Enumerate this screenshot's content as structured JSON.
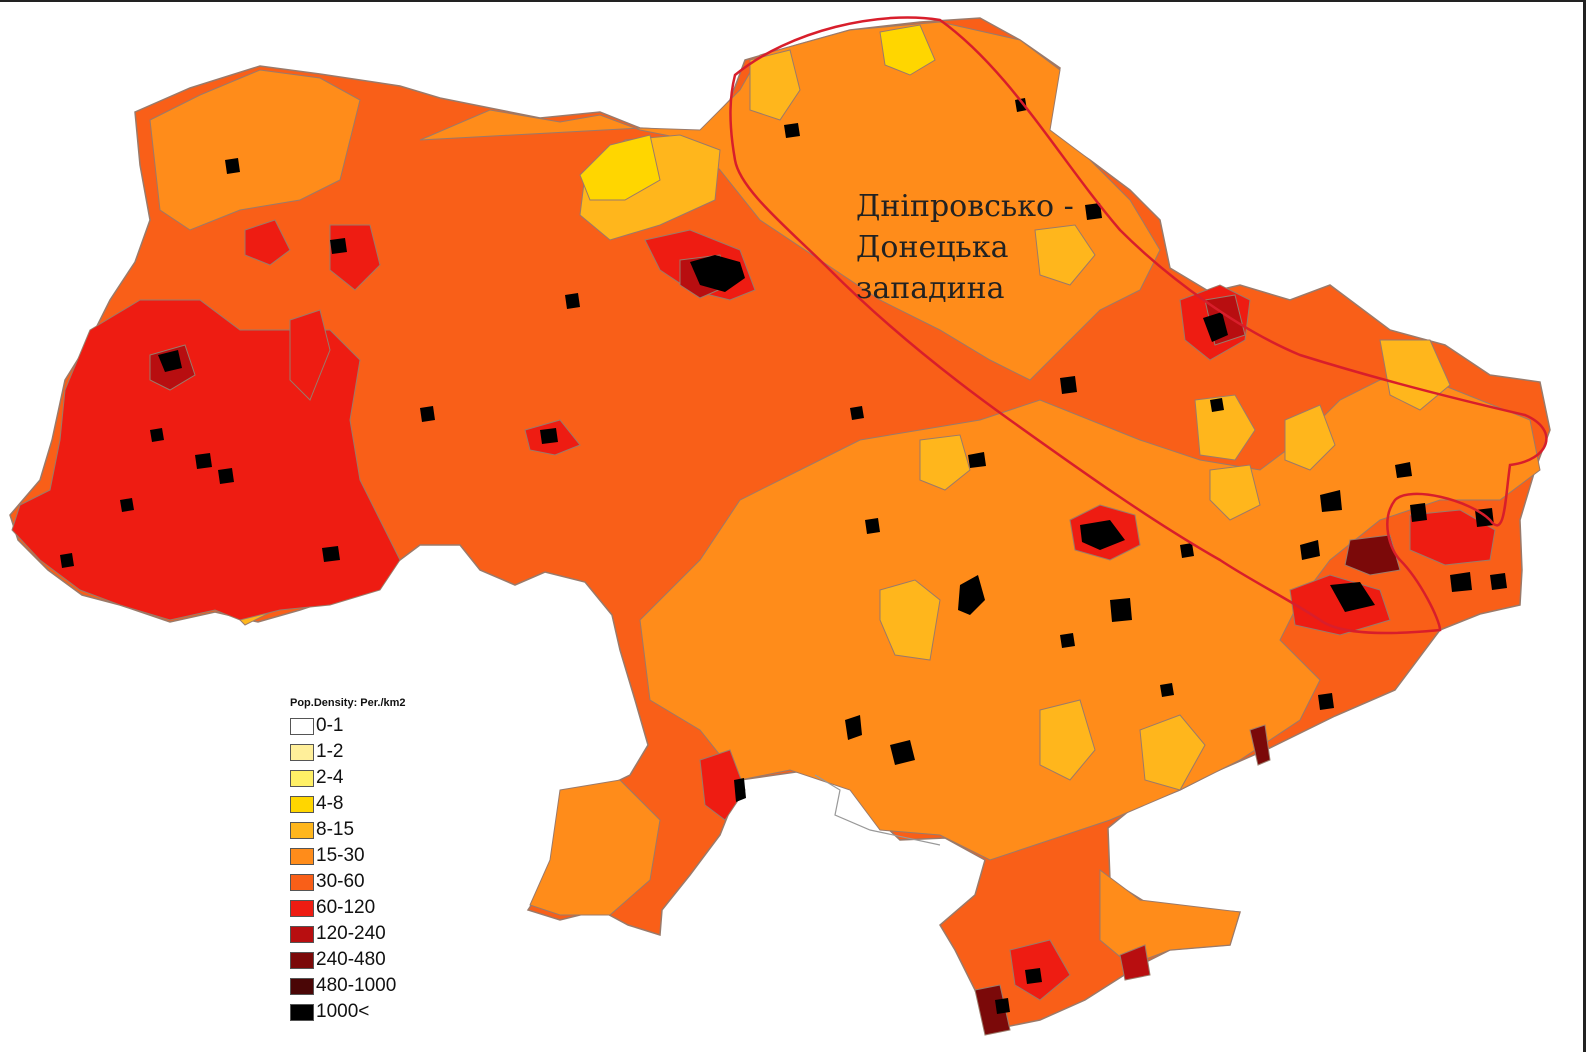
{
  "map": {
    "annotation_lines": [
      "Дніпровсько -",
      "Донецька",
      "западина"
    ],
    "legend": {
      "title": "Pop.Density: Per./km2",
      "items": [
        {
          "label": "0-1",
          "color": "#ffffff"
        },
        {
          "label": "1-2",
          "color": "#ffef9a"
        },
        {
          "label": "2-4",
          "color": "#fff066"
        },
        {
          "label": "4-8",
          "color": "#ffd600"
        },
        {
          "label": "8-15",
          "color": "#ffb61c"
        },
        {
          "label": "15-30",
          "color": "#ff8c1a"
        },
        {
          "label": "30-60",
          "color": "#f95f18"
        },
        {
          "label": "60-120",
          "color": "#ee1c12"
        },
        {
          "label": "120-240",
          "color": "#b80e10"
        },
        {
          "label": "240-480",
          "color": "#7b0909"
        },
        {
          "label": "480-1000",
          "color": "#4a0606"
        },
        {
          "label": "1000<",
          "color": "#000000"
        }
      ]
    },
    "colors": {
      "density_8_15": "#ffb61c",
      "density_15_30": "#ff8c1a",
      "density_30_60": "#f95f18",
      "density_60_120": "#ee1c12",
      "density_120_240": "#b80e10",
      "density_4_8": "#ffd600",
      "density_1000_plus": "#000000",
      "outline_annotation": "#d81e2b",
      "district_borders": "#9a7a6a"
    }
  }
}
